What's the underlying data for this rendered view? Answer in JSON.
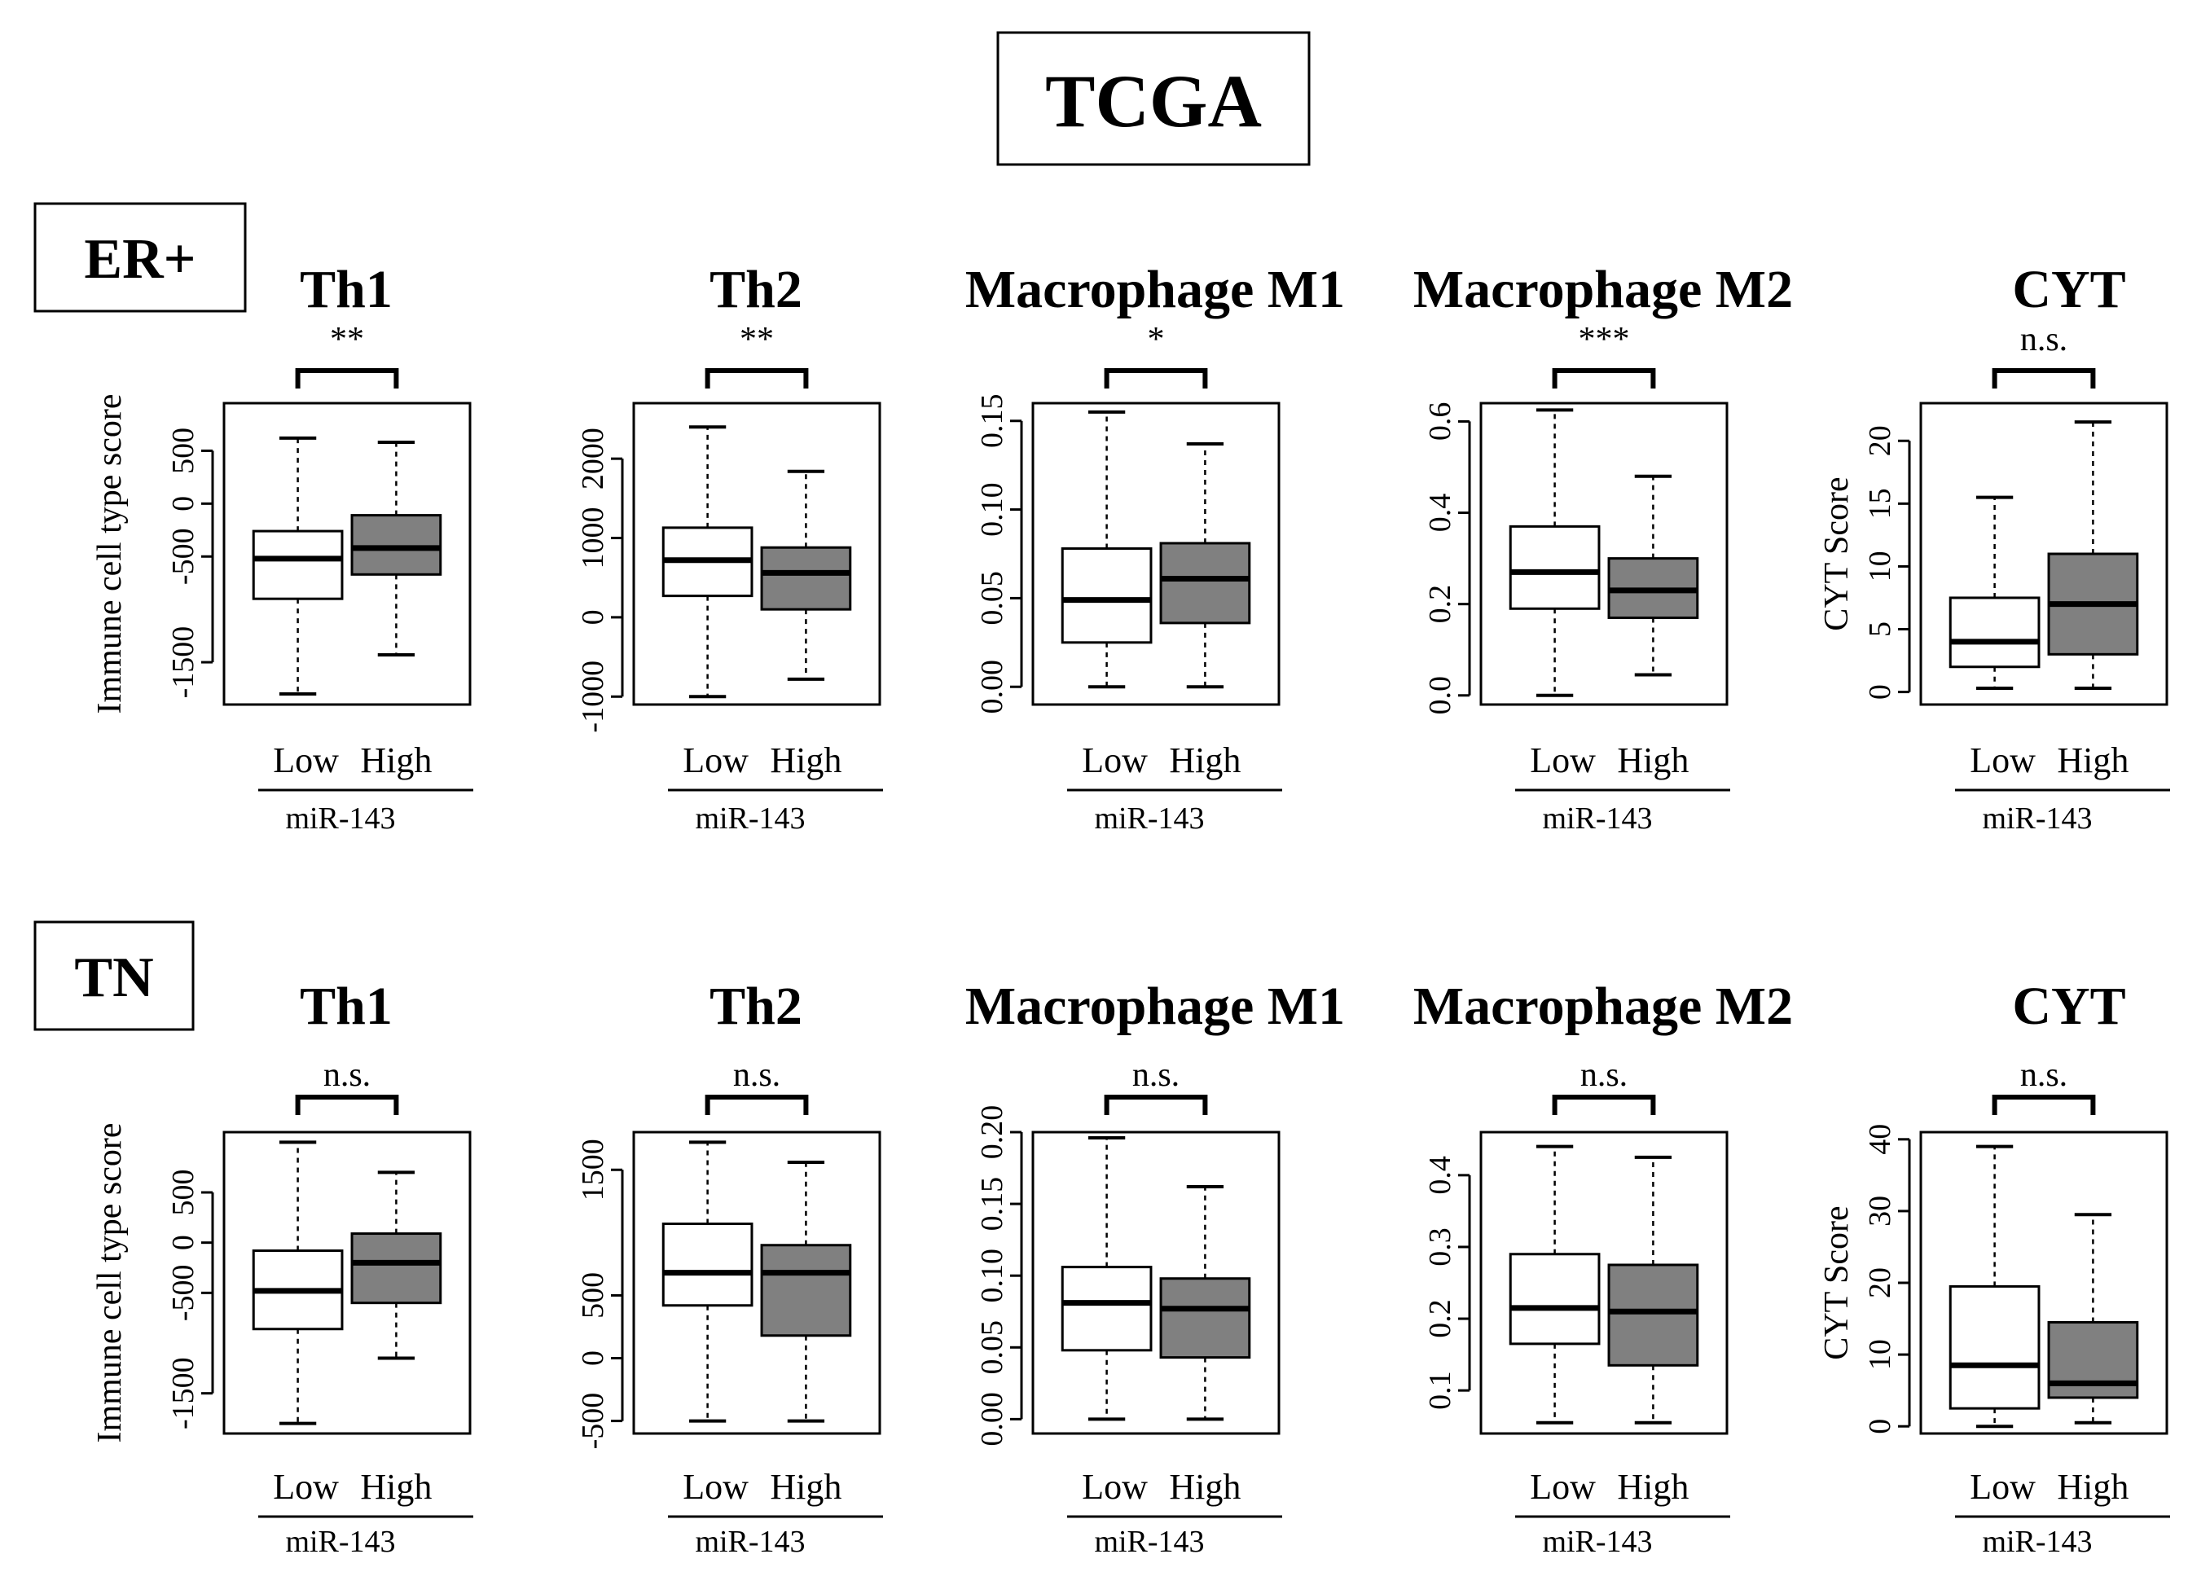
{
  "title": "TCGA",
  "colors": {
    "low_fill": "#ffffff",
    "high_fill": "#808080",
    "stroke": "#000000"
  },
  "chart_data": [
    {
      "group": "ER+",
      "panels": [
        {
          "type": "box",
          "title": "Th1",
          "significance": "**",
          "ylabel": "Immune  cell type score",
          "ylim": [
            -1900,
            950
          ],
          "yticks": [
            "-1500",
            "-500",
            "0",
            "500"
          ],
          "ytick_values": [
            -1500,
            -500,
            0,
            500
          ],
          "categories": [
            "Low",
            "High"
          ],
          "xlabel": "miR-143",
          "boxes": [
            {
              "name": "Low",
              "whisker_low": -1800,
              "q1": -900,
              "median": -520,
              "q3": -260,
              "whisker_high": 620
            },
            {
              "name": "High",
              "whisker_low": -1430,
              "q1": -670,
              "median": -420,
              "q3": -110,
              "whisker_high": 580
            }
          ]
        },
        {
          "type": "box",
          "title": "Th2",
          "significance": "**",
          "ylabel": "",
          "ylim": [
            -1100,
            2700
          ],
          "yticks": [
            "-1000",
            "0",
            "1000",
            "2000"
          ],
          "ytick_values": [
            -1000,
            0,
            1000,
            2000
          ],
          "categories": [
            "Low",
            "High"
          ],
          "xlabel": "miR-143",
          "boxes": [
            {
              "name": "Low",
              "whisker_low": -1000,
              "q1": 270,
              "median": 720,
              "q3": 1130,
              "whisker_high": 2400
            },
            {
              "name": "High",
              "whisker_low": -780,
              "q1": 100,
              "median": 560,
              "q3": 880,
              "whisker_high": 1840
            }
          ]
        },
        {
          "type": "box",
          "title": "Macrophage M1",
          "significance": "*",
          "ylabel": "",
          "ylim": [
            -0.01,
            0.16
          ],
          "yticks": [
            "0.00",
            "0.05",
            "0.10",
            "0.15"
          ],
          "ytick_values": [
            0.0,
            0.05,
            0.1,
            0.15
          ],
          "categories": [
            "Low",
            "High"
          ],
          "xlabel": "miR-143",
          "boxes": [
            {
              "name": "Low",
              "whisker_low": 0.0,
              "q1": 0.025,
              "median": 0.049,
              "q3": 0.078,
              "whisker_high": 0.155
            },
            {
              "name": "High",
              "whisker_low": 0.0,
              "q1": 0.036,
              "median": 0.061,
              "q3": 0.081,
              "whisker_high": 0.137
            }
          ]
        },
        {
          "type": "box",
          "title": "Macrophage M2",
          "significance": "***",
          "ylabel": "",
          "ylim": [
            -0.02,
            0.64
          ],
          "yticks": [
            "0.0",
            "0.2",
            "0.4",
            "0.6"
          ],
          "ytick_values": [
            0.0,
            0.2,
            0.4,
            0.6
          ],
          "categories": [
            "Low",
            "High"
          ],
          "xlabel": "miR-143",
          "boxes": [
            {
              "name": "Low",
              "whisker_low": 0.0,
              "q1": 0.19,
              "median": 0.27,
              "q3": 0.37,
              "whisker_high": 0.625
            },
            {
              "name": "High",
              "whisker_low": 0.045,
              "q1": 0.17,
              "median": 0.23,
              "q3": 0.3,
              "whisker_high": 0.48
            }
          ]
        },
        {
          "type": "box",
          "title": "CYT",
          "significance": "n.s.",
          "ylabel": "CYT  Score",
          "ylim": [
            -1,
            23
          ],
          "yticks": [
            "0",
            "5",
            "10",
            "15",
            "20"
          ],
          "ytick_values": [
            0,
            5,
            10,
            15,
            20
          ],
          "categories": [
            "Low",
            "High"
          ],
          "xlabel": "miR-143",
          "boxes": [
            {
              "name": "Low",
              "whisker_low": 0.3,
              "q1": 2,
              "median": 4,
              "q3": 7.5,
              "whisker_high": 15.5
            },
            {
              "name": "High",
              "whisker_low": 0.3,
              "q1": 3,
              "median": 7,
              "q3": 11,
              "whisker_high": 21.5
            }
          ]
        }
      ]
    },
    {
      "group": "TN",
      "panels": [
        {
          "type": "box",
          "title": "Th1",
          "significance": "n.s.",
          "ylabel": "Immune  cell type score",
          "ylim": [
            -1900,
            1100
          ],
          "yticks": [
            "-1500",
            "-500",
            "0",
            "500"
          ],
          "ytick_values": [
            -1500,
            -500,
            0,
            500
          ],
          "categories": [
            "Low",
            "High"
          ],
          "xlabel": "miR-143",
          "boxes": [
            {
              "name": "Low",
              "whisker_low": -1800,
              "q1": -860,
              "median": -480,
              "q3": -80,
              "whisker_high": 1000
            },
            {
              "name": "High",
              "whisker_low": -1150,
              "q1": -600,
              "median": -200,
              "q3": 90,
              "whisker_high": 700
            }
          ]
        },
        {
          "type": "box",
          "title": "Th2",
          "significance": "n.s.",
          "ylabel": "",
          "ylim": [
            -600,
            1800
          ],
          "yticks": [
            "-500",
            "0",
            "500",
            "1500"
          ],
          "ytick_values": [
            -500,
            0,
            500,
            1500
          ],
          "categories": [
            "Low",
            "High"
          ],
          "xlabel": "miR-143",
          "boxes": [
            {
              "name": "Low",
              "whisker_low": -500,
              "q1": 420,
              "median": 680,
              "q3": 1070,
              "whisker_high": 1720
            },
            {
              "name": "High",
              "whisker_low": -500,
              "q1": 180,
              "median": 680,
              "q3": 900,
              "whisker_high": 1560
            }
          ]
        },
        {
          "type": "box",
          "title": "Macrophage M1",
          "significance": "n.s.",
          "ylabel": "",
          "ylim": [
            -0.01,
            0.2
          ],
          "yticks": [
            "0.00",
            "0.05",
            "0.10",
            "0.15",
            "0.20"
          ],
          "ytick_values": [
            0.0,
            0.05,
            0.1,
            0.15,
            0.2
          ],
          "categories": [
            "Low",
            "High"
          ],
          "xlabel": "miR-143",
          "boxes": [
            {
              "name": "Low",
              "whisker_low": 0.0,
              "q1": 0.048,
              "median": 0.081,
              "q3": 0.106,
              "whisker_high": 0.196
            },
            {
              "name": "High",
              "whisker_low": 0.0,
              "q1": 0.043,
              "median": 0.077,
              "q3": 0.098,
              "whisker_high": 0.162
            }
          ]
        },
        {
          "type": "box",
          "title": "Macrophage M2",
          "significance": "n.s.",
          "ylabel": "",
          "ylim": [
            0.04,
            0.46
          ],
          "yticks": [
            "0.1",
            "0.2",
            "0.3",
            "0.4"
          ],
          "ytick_values": [
            0.1,
            0.2,
            0.3,
            0.4
          ],
          "categories": [
            "Low",
            "High"
          ],
          "xlabel": "miR-143",
          "boxes": [
            {
              "name": "Low",
              "whisker_low": 0.055,
              "q1": 0.165,
              "median": 0.215,
              "q3": 0.29,
              "whisker_high": 0.44
            },
            {
              "name": "High",
              "whisker_low": 0.055,
              "q1": 0.135,
              "median": 0.21,
              "q3": 0.275,
              "whisker_high": 0.425
            }
          ]
        },
        {
          "type": "box",
          "title": "CYT",
          "significance": "n.s.",
          "ylabel": "CYT  Score",
          "ylim": [
            -1,
            41
          ],
          "yticks": [
            "0",
            "10",
            "20",
            "30",
            "40"
          ],
          "ytick_values": [
            0,
            10,
            20,
            30,
            40
          ],
          "categories": [
            "Low",
            "High"
          ],
          "xlabel": "miR-143",
          "boxes": [
            {
              "name": "Low",
              "whisker_low": 0,
              "q1": 2.5,
              "median": 8.5,
              "q3": 19.5,
              "whisker_high": 39
            },
            {
              "name": "High",
              "whisker_low": 0.5,
              "q1": 4,
              "median": 6,
              "q3": 14.5,
              "whisker_high": 29.5
            }
          ]
        }
      ]
    }
  ]
}
